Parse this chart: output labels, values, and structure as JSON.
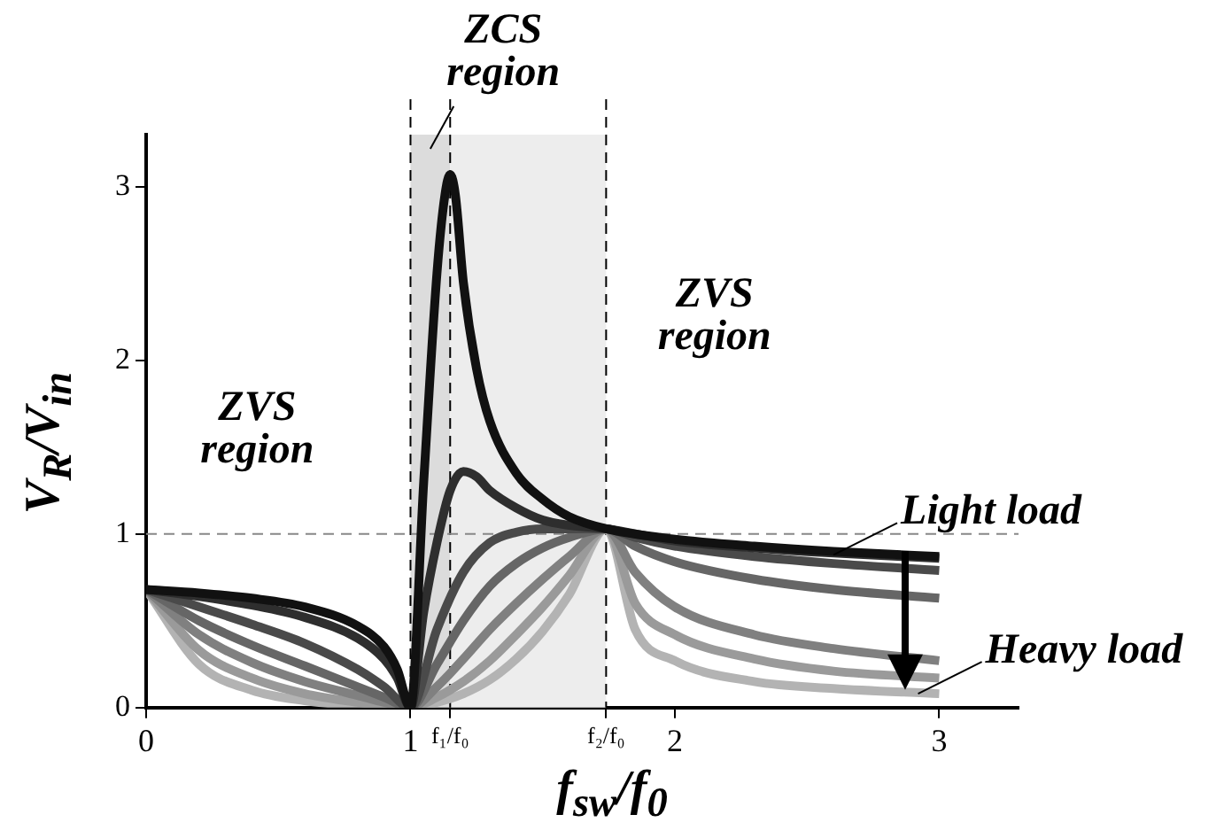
{
  "chart_data": {
    "type": "line",
    "xlabel": "f$_{sw}$/f$_{0}$",
    "ylabel": "V$_{R}$/V$_{in}$",
    "xlim": [
      0,
      3.3
    ],
    "ylim": [
      0,
      3.3
    ],
    "xticks": [
      0,
      1,
      {
        "value": 1.15,
        "label": "f₁/f₀"
      },
      {
        "value": 1.74,
        "label": "f₂/f₀"
      },
      2,
      3
    ],
    "yticks": [
      0,
      1,
      2,
      3
    ],
    "grid": false,
    "legend": false,
    "x": [
      0,
      0.2,
      0.4,
      0.6,
      0.8,
      0.9,
      1,
      1.1,
      1.2,
      1.3,
      1.4,
      1.5,
      1.6,
      1.74,
      1.85,
      2,
      2.3,
      2.6,
      3
    ],
    "series": [
      {
        "color": "#111111",
        "x": [
          0,
          0.2,
          0.4,
          0.6,
          0.8,
          0.9,
          0.95,
          1,
          1.05,
          1.1,
          1.13,
          1.15,
          1.17,
          1.2,
          1.25,
          1.3,
          1.4,
          1.5,
          1.6,
          1.74,
          2,
          2.3,
          2.6,
          3
        ],
        "values": [
          0.68,
          0.66,
          0.63,
          0.58,
          0.47,
          0.35,
          0.22,
          0,
          1.3,
          2.5,
          2.95,
          3.07,
          2.95,
          2.45,
          1.95,
          1.65,
          1.35,
          1.2,
          1.1,
          1.03,
          0.97,
          0.93,
          0.9,
          0.87
        ]
      },
      {
        "color": "#2e2e2e",
        "x": [
          0,
          0.2,
          0.4,
          0.6,
          0.8,
          0.9,
          0.95,
          1,
          1.05,
          1.1,
          1.15,
          1.2,
          1.25,
          1.3,
          1.4,
          1.5,
          1.6,
          1.74,
          2,
          2.3,
          2.6,
          3
        ],
        "values": [
          0.68,
          0.64,
          0.59,
          0.52,
          0.4,
          0.28,
          0.17,
          0,
          0.55,
          0.95,
          1.25,
          1.36,
          1.33,
          1.25,
          1.15,
          1.08,
          1.05,
          1.03,
          0.96,
          0.92,
          0.89,
          0.86
        ]
      },
      {
        "color": "#4a4a4a",
        "values": [
          0.68,
          0.58,
          0.48,
          0.37,
          0.22,
          0.12,
          0,
          0.45,
          0.78,
          0.95,
          1.01,
          1.03,
          1.03,
          1.03,
          0.98,
          0.93,
          0.87,
          0.83,
          0.79
        ]
      },
      {
        "color": "#666666",
        "values": [
          0.68,
          0.5,
          0.36,
          0.24,
          0.12,
          0.06,
          0,
          0.25,
          0.5,
          0.7,
          0.83,
          0.92,
          0.98,
          1.03,
          0.93,
          0.84,
          0.74,
          0.68,
          0.63
        ]
      },
      {
        "color": "#808080",
        "values": [
          0.68,
          0.42,
          0.26,
          0.15,
          0.07,
          0.03,
          0,
          0.12,
          0.28,
          0.45,
          0.6,
          0.74,
          0.87,
          1.03,
          0.78,
          0.58,
          0.42,
          0.34,
          0.27
        ]
      },
      {
        "color": "#9a9a9a",
        "values": [
          0.68,
          0.33,
          0.17,
          0.08,
          0.03,
          0.01,
          0,
          0.06,
          0.15,
          0.27,
          0.42,
          0.58,
          0.76,
          1.03,
          0.6,
          0.42,
          0.28,
          0.21,
          0.17
        ]
      },
      {
        "color": "#b3b3b3",
        "values": [
          0.68,
          0.25,
          0.1,
          0.04,
          0.01,
          0,
          0,
          0.03,
          0.08,
          0.16,
          0.28,
          0.44,
          0.65,
          1.03,
          0.45,
          0.27,
          0.15,
          0.11,
          0.08
        ]
      }
    ],
    "bands": [
      {
        "axis": "x",
        "from": 1,
        "to": 1.15,
        "label": "ZCS region",
        "color": "#dcdcdc"
      },
      {
        "axis": "x",
        "from": 1.15,
        "to": 1.74,
        "color": "#ededed"
      }
    ],
    "ref_lines": [
      {
        "axis": "x",
        "value": 1,
        "line_style": "dashed"
      },
      {
        "axis": "x",
        "value": 1.15,
        "line_style": "dashed"
      },
      {
        "axis": "x",
        "value": 1.74,
        "line_style": "dashed"
      },
      {
        "axis": "y",
        "value": 1,
        "line_style": "dashed",
        "color": "#888888"
      }
    ],
    "annotations": [
      "ZVS region",
      "ZVS region",
      {
        "text": "Light load",
        "x": 2.6,
        "y": 0.88
      },
      {
        "text": "Heavy load",
        "x": 2.92,
        "y": 0.08
      }
    ]
  }
}
